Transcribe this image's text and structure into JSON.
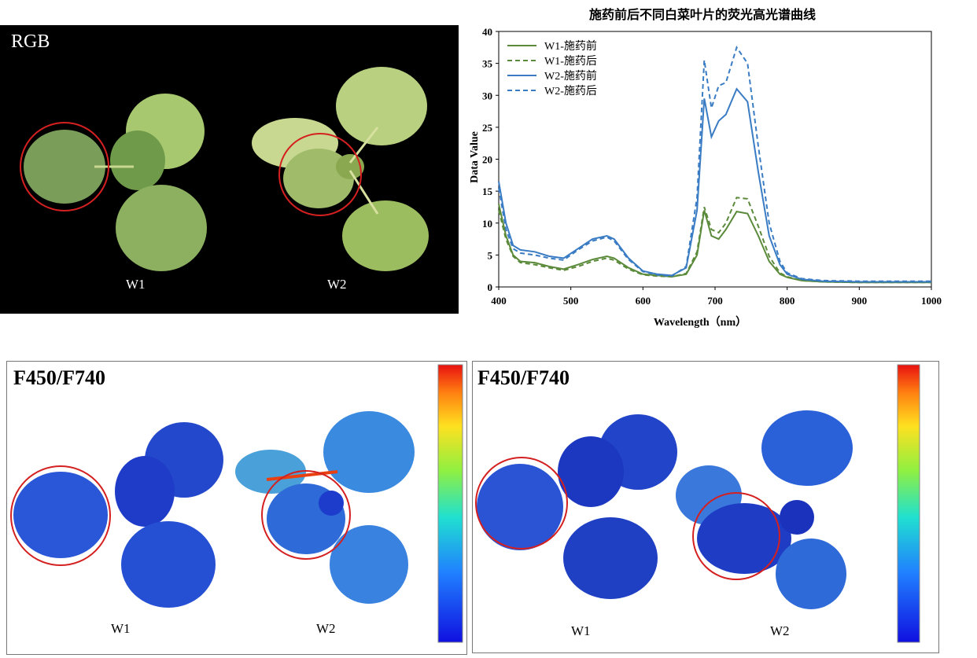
{
  "rgb_panel": {
    "title": "RGB",
    "label_w1": "W1",
    "label_w2": "W2"
  },
  "fluor_panels": [
    {
      "title": "F450/F740",
      "label_w1": "W1",
      "label_w2": "W2"
    },
    {
      "title": "F450/F740",
      "label_w1": "W1",
      "label_w2": "W2"
    }
  ],
  "colors": {
    "green_series": "#5a8a3a",
    "blue_series": "#3a7cc4",
    "circle": "#d42020"
  },
  "chart_data": {
    "type": "line",
    "title": "施药前后不同白菜叶片的荧光高光谱曲线",
    "xlabel": "Wavelength（nm）",
    "ylabel": "Data Value",
    "xlim": [
      400,
      1000
    ],
    "ylim": [
      0,
      40
    ],
    "x_ticks": [
      "400",
      "500",
      "600",
      "700",
      "800",
      "900",
      "1000"
    ],
    "y_ticks": [
      "0",
      "5",
      "10",
      "15",
      "20",
      "25",
      "30",
      "35",
      "40"
    ],
    "legend_position": "top-left",
    "series": [
      {
        "name": "W1-施药前",
        "style": "solid",
        "color": "#5a8a3a",
        "x": [
          400,
          410,
          420,
          430,
          450,
          470,
          490,
          510,
          530,
          550,
          560,
          580,
          600,
          620,
          640,
          660,
          675,
          685,
          695,
          705,
          715,
          730,
          745,
          760,
          775,
          790,
          800,
          820,
          850,
          900,
          950,
          1000
        ],
        "y": [
          13,
          8,
          5,
          4,
          3.8,
          3.2,
          2.8,
          3.5,
          4.3,
          4.8,
          4.5,
          3.0,
          2.0,
          1.8,
          1.6,
          2.0,
          5.0,
          12.0,
          8.0,
          7.5,
          9.0,
          11.8,
          11.5,
          8.0,
          4.0,
          2.0,
          1.5,
          1.0,
          0.8,
          0.7,
          0.7,
          0.7
        ]
      },
      {
        "name": "W1-施药后",
        "style": "dashed",
        "color": "#5a8a3a",
        "x": [
          400,
          410,
          420,
          430,
          450,
          470,
          490,
          510,
          530,
          550,
          560,
          580,
          600,
          620,
          640,
          660,
          675,
          685,
          695,
          705,
          715,
          730,
          745,
          760,
          775,
          790,
          800,
          820,
          850,
          900,
          950,
          1000
        ],
        "y": [
          12,
          7.5,
          4.8,
          3.8,
          3.5,
          3.0,
          2.6,
          3.2,
          4.0,
          4.5,
          4.2,
          2.8,
          1.9,
          1.7,
          1.6,
          2.1,
          5.5,
          12.5,
          9.0,
          8.5,
          10.0,
          14.0,
          13.8,
          9.5,
          4.8,
          2.2,
          1.6,
          1.0,
          0.8,
          0.7,
          0.7,
          0.7
        ]
      },
      {
        "name": "W2-施药前",
        "style": "solid",
        "color": "#3a7cc4",
        "x": [
          400,
          410,
          420,
          430,
          450,
          470,
          490,
          510,
          530,
          550,
          560,
          580,
          600,
          620,
          640,
          660,
          675,
          685,
          695,
          705,
          715,
          730,
          745,
          760,
          775,
          790,
          800,
          820,
          850,
          900,
          950,
          1000
        ],
        "y": [
          16.5,
          10,
          6.5,
          5.8,
          5.5,
          4.8,
          4.5,
          6.0,
          7.5,
          8.0,
          7.5,
          4.5,
          2.5,
          2.0,
          1.8,
          3.0,
          12.0,
          29.5,
          23.5,
          26.0,
          27.0,
          31.0,
          29.0,
          18.0,
          8.0,
          3.5,
          2.0,
          1.2,
          0.9,
          0.8,
          0.8,
          0.8
        ]
      },
      {
        "name": "W2-施药后",
        "style": "dashed",
        "color": "#3a7cc4",
        "x": [
          400,
          410,
          420,
          430,
          450,
          470,
          490,
          510,
          530,
          550,
          560,
          580,
          600,
          620,
          640,
          660,
          675,
          685,
          695,
          705,
          715,
          730,
          745,
          760,
          775,
          790,
          800,
          820,
          850,
          900,
          950,
          1000
        ],
        "y": [
          15.5,
          9,
          6.0,
          5.3,
          5.0,
          4.5,
          4.2,
          5.8,
          7.2,
          7.8,
          7.2,
          4.3,
          2.4,
          1.9,
          1.7,
          3.2,
          14.0,
          35.5,
          28.0,
          31.5,
          32.0,
          37.5,
          35.0,
          22.0,
          10.0,
          4.0,
          2.2,
          1.3,
          1.0,
          0.9,
          0.9,
          0.9
        ]
      }
    ]
  }
}
